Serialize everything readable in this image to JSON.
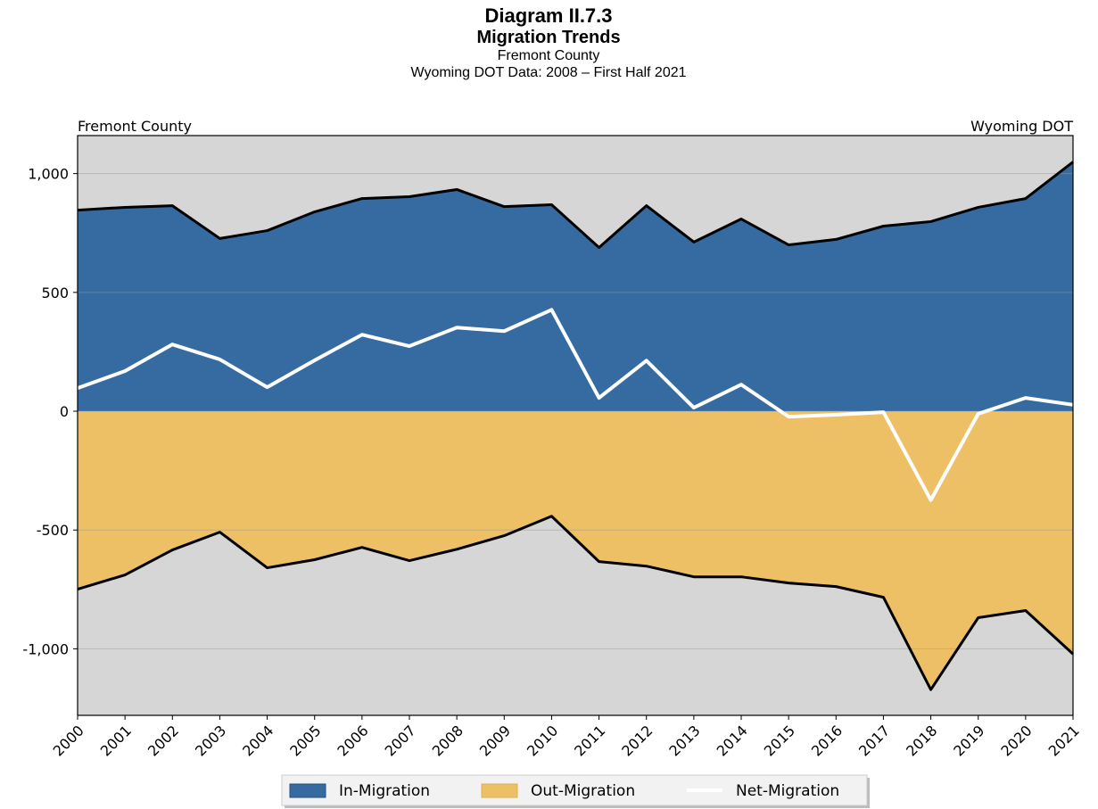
{
  "chart_data": {
    "type": "area",
    "title": "Diagram II.7.3",
    "subtitle": "Migration Trends",
    "subtitle2": "Fremont County",
    "subtitle3": "Wyoming DOT Data: 2008 – First Half 2021",
    "left_annotation": "Fremont County",
    "right_annotation": "Wyoming DOT",
    "categories": [
      "2000",
      "2001",
      "2002",
      "2003",
      "2004",
      "2005",
      "2006",
      "2007",
      "2008",
      "2009",
      "2010",
      "2011",
      "2012",
      "2013",
      "2014",
      "2015",
      "2016",
      "2017",
      "2018",
      "2019",
      "2020",
      "2021"
    ],
    "series": [
      {
        "name": "In-Migration",
        "color": "#366ba1",
        "style": "area",
        "values": [
          846,
          858,
          865,
          727,
          760,
          839,
          895,
          903,
          933,
          861,
          869,
          689,
          865,
          712,
          809,
          700,
          723,
          779,
          798,
          858,
          895,
          1049
        ]
      },
      {
        "name": "Out-Migration",
        "color": "#eec066",
        "style": "area",
        "values": [
          -749,
          -689,
          -584,
          -509,
          -659,
          -625,
          -573,
          -629,
          -581,
          -524,
          -442,
          -633,
          -652,
          -697,
          -697,
          -723,
          -738,
          -783,
          -1172,
          -869,
          -839,
          -1022
        ]
      },
      {
        "name": "Net-Migration",
        "color": "#ffffff",
        "style": "line",
        "values": [
          97,
          169,
          281,
          218,
          101,
          214,
          322,
          274,
          352,
          337,
          427,
          56,
          213,
          15,
          112,
          -23,
          -15,
          -4,
          -374,
          -11,
          56,
          27
        ]
      }
    ],
    "ylim": [
      -1280,
      1160
    ],
    "yticks": [
      {
        "value": -1000,
        "label": "-1,000"
      },
      -500,
      0,
      500,
      {
        "value": 1000,
        "label": "1,000"
      }
    ],
    "grid": true,
    "legend": "bottom"
  }
}
